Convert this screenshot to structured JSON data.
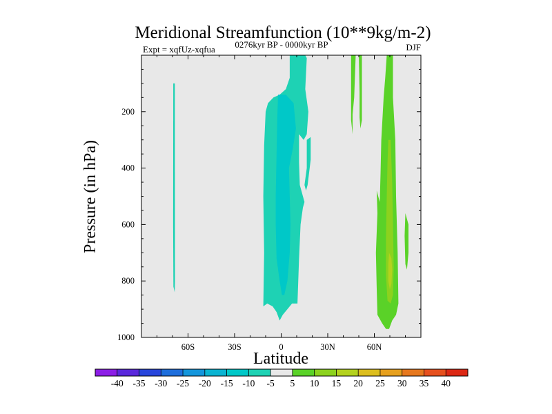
{
  "chart_data": {
    "type": "heatmap",
    "title": "Meridional Streamfunction (10**9kg/m-2)",
    "left_string": "Expt = xqfUz-xqfua",
    "center_string": "0276kyr BP - 0000kyr BP",
    "right_string": "DJF",
    "xlabel": "Latitude",
    "ylabel": "Pressure (in hPa)",
    "xlim": [
      -90,
      90
    ],
    "ylim": [
      1000,
      0
    ],
    "x_ticks": [
      {
        "value": -60,
        "label": "60S"
      },
      {
        "value": -30,
        "label": "30S"
      },
      {
        "value": 0,
        "label": "0"
      },
      {
        "value": 30,
        "label": "30N"
      },
      {
        "value": 60,
        "label": "60N"
      }
    ],
    "y_ticks": [
      {
        "value": 200,
        "label": "200"
      },
      {
        "value": 400,
        "label": "400"
      },
      {
        "value": 600,
        "label": "600"
      },
      {
        "value": 800,
        "label": "800"
      },
      {
        "value": 1000,
        "label": "1000"
      }
    ],
    "background_color": "#e8e8e8",
    "colorbar": {
      "levels": [
        "-40",
        "-35",
        "-30",
        "-25",
        "-20",
        "-15",
        "-10",
        "-5",
        "5",
        "10",
        "15",
        "20",
        "25",
        "30",
        "35",
        "40"
      ],
      "colors": [
        "#8c1ee6",
        "#5a28dc",
        "#2846dc",
        "#1e6edc",
        "#1496dc",
        "#0ab4d2",
        "#00c8c8",
        "#1ed2b4",
        "#e8e8e8",
        "#5ad228",
        "#8cd21e",
        "#b4d21e",
        "#dcbe1e",
        "#e6a01e",
        "#e6781e",
        "#e6501e",
        "#dc2814"
      ]
    },
    "regions": [
      {
        "name": "sh-thin-band",
        "value": -7.5,
        "level": "-10 to -5",
        "outline": [
          [
            -69.5,
            100
          ],
          [
            -68.5,
            100
          ],
          [
            -68.4,
            800
          ],
          [
            -68.6,
            840
          ],
          [
            -69.4,
            820
          ],
          [
            -69.6,
            600
          ]
        ]
      },
      {
        "name": "tropical-negative-cell",
        "value": -7.5,
        "level": "-10 to -5",
        "outline": [
          [
            5.5,
            0
          ],
          [
            15.5,
            0
          ],
          [
            16.5,
            10
          ],
          [
            15.5,
            120
          ],
          [
            17.5,
            200
          ],
          [
            16.5,
            280
          ],
          [
            14.5,
            300
          ],
          [
            11.5,
            280
          ],
          [
            11.5,
            380
          ],
          [
            12,
            460
          ],
          [
            15,
            520
          ],
          [
            14,
            540
          ],
          [
            12.5,
            600
          ],
          [
            11.5,
            720
          ],
          [
            10.5,
            880
          ],
          [
            7,
            880
          ],
          [
            1,
            920
          ],
          [
            -1,
            940
          ],
          [
            -3,
            910
          ],
          [
            -5.5,
            890
          ],
          [
            -9,
            880
          ],
          [
            -11.5,
            890
          ],
          [
            -11,
            700
          ],
          [
            -11.5,
            500
          ],
          [
            -11,
            320
          ],
          [
            -10,
            200
          ],
          [
            -8.5,
            170
          ],
          [
            -5,
            150
          ],
          [
            -1,
            140
          ],
          [
            3,
            120
          ],
          [
            5.5,
            80
          ]
        ]
      },
      {
        "name": "nh-subtropical-negative-patch",
        "value": -7.5,
        "level": "-10 to -5",
        "outline": [
          [
            16.5,
            300
          ],
          [
            19,
            290
          ],
          [
            19,
            370
          ],
          [
            17,
            460
          ],
          [
            16,
            480
          ],
          [
            15,
            460
          ],
          [
            16.5,
            400
          ]
        ]
      },
      {
        "name": "tropical-core",
        "value": -12.5,
        "level": "-15 to -10",
        "outline": [
          [
            -2,
            140
          ],
          [
            3,
            140
          ],
          [
            8,
            170
          ],
          [
            9.5,
            260
          ],
          [
            7.5,
            330
          ],
          [
            5,
            400
          ],
          [
            5.5,
            500
          ],
          [
            6,
            600
          ],
          [
            5.5,
            700
          ],
          [
            4,
            800
          ],
          [
            2,
            850
          ],
          [
            0.5,
            850
          ],
          [
            -1,
            800
          ],
          [
            -3,
            720
          ],
          [
            -3.5,
            600
          ],
          [
            -3.5,
            500
          ],
          [
            -3,
            350
          ],
          [
            -2.5,
            220
          ]
        ]
      },
      {
        "name": "nh-positive-column-a",
        "value": 7.5,
        "level": "5 to 10",
        "outline": [
          [
            45,
            0
          ],
          [
            48,
            0
          ],
          [
            47,
            150
          ],
          [
            46,
            210
          ],
          [
            46,
            280
          ],
          [
            45,
            230
          ],
          [
            45,
            140
          ]
        ]
      },
      {
        "name": "nh-positive-column-b",
        "value": 7.5,
        "level": "5 to 10",
        "outline": [
          [
            50,
            0
          ],
          [
            52,
            0
          ],
          [
            52,
            150
          ],
          [
            52,
            230
          ],
          [
            51,
            260
          ],
          [
            50.5,
            220
          ],
          [
            50.5,
            130
          ]
        ]
      },
      {
        "name": "nh-positive-main-cell",
        "value": 7.5,
        "level": "5 to 10",
        "outline": [
          [
            68,
            0
          ],
          [
            72,
            0
          ],
          [
            72,
            150
          ],
          [
            73.5,
            300
          ],
          [
            74,
            500
          ],
          [
            75,
            700
          ],
          [
            75.5,
            880
          ],
          [
            74,
            920
          ],
          [
            71.5,
            940
          ],
          [
            69.5,
            970
          ],
          [
            67.5,
            970
          ],
          [
            65,
            950
          ],
          [
            62,
            920
          ],
          [
            61.5,
            820
          ],
          [
            61,
            700
          ],
          [
            62,
            560
          ],
          [
            61.5,
            480
          ],
          [
            63.5,
            520
          ],
          [
            64,
            420
          ],
          [
            64.5,
            300
          ],
          [
            66,
            150
          ],
          [
            67,
            80
          ]
        ]
      },
      {
        "name": "nh-positive-outer-patch",
        "value": 7.5,
        "level": "5 to 10",
        "outline": [
          [
            80,
            560
          ],
          [
            82,
            600
          ],
          [
            82,
            700
          ],
          [
            81,
            760
          ],
          [
            80,
            740
          ],
          [
            79.5,
            640
          ]
        ]
      },
      {
        "name": "nh-positive-inner-cell",
        "value": 12.5,
        "level": "10 to 15",
        "outline": [
          [
            69,
            300
          ],
          [
            70.5,
            300
          ],
          [
            71.5,
            450
          ],
          [
            72,
            600
          ],
          [
            72.5,
            750
          ],
          [
            72,
            850
          ],
          [
            70.5,
            880
          ],
          [
            68.5,
            870
          ],
          [
            67.5,
            780
          ],
          [
            67.5,
            650
          ],
          [
            68,
            500
          ],
          [
            68.5,
            380
          ]
        ]
      },
      {
        "name": "nh-positive-core",
        "value": 17.5,
        "level": "15 to 20",
        "outline": [
          [
            69.5,
            700
          ],
          [
            71,
            720
          ],
          [
            71.5,
            760
          ],
          [
            71,
            810
          ],
          [
            70,
            830
          ],
          [
            69,
            800
          ],
          [
            69,
            740
          ]
        ]
      }
    ]
  }
}
